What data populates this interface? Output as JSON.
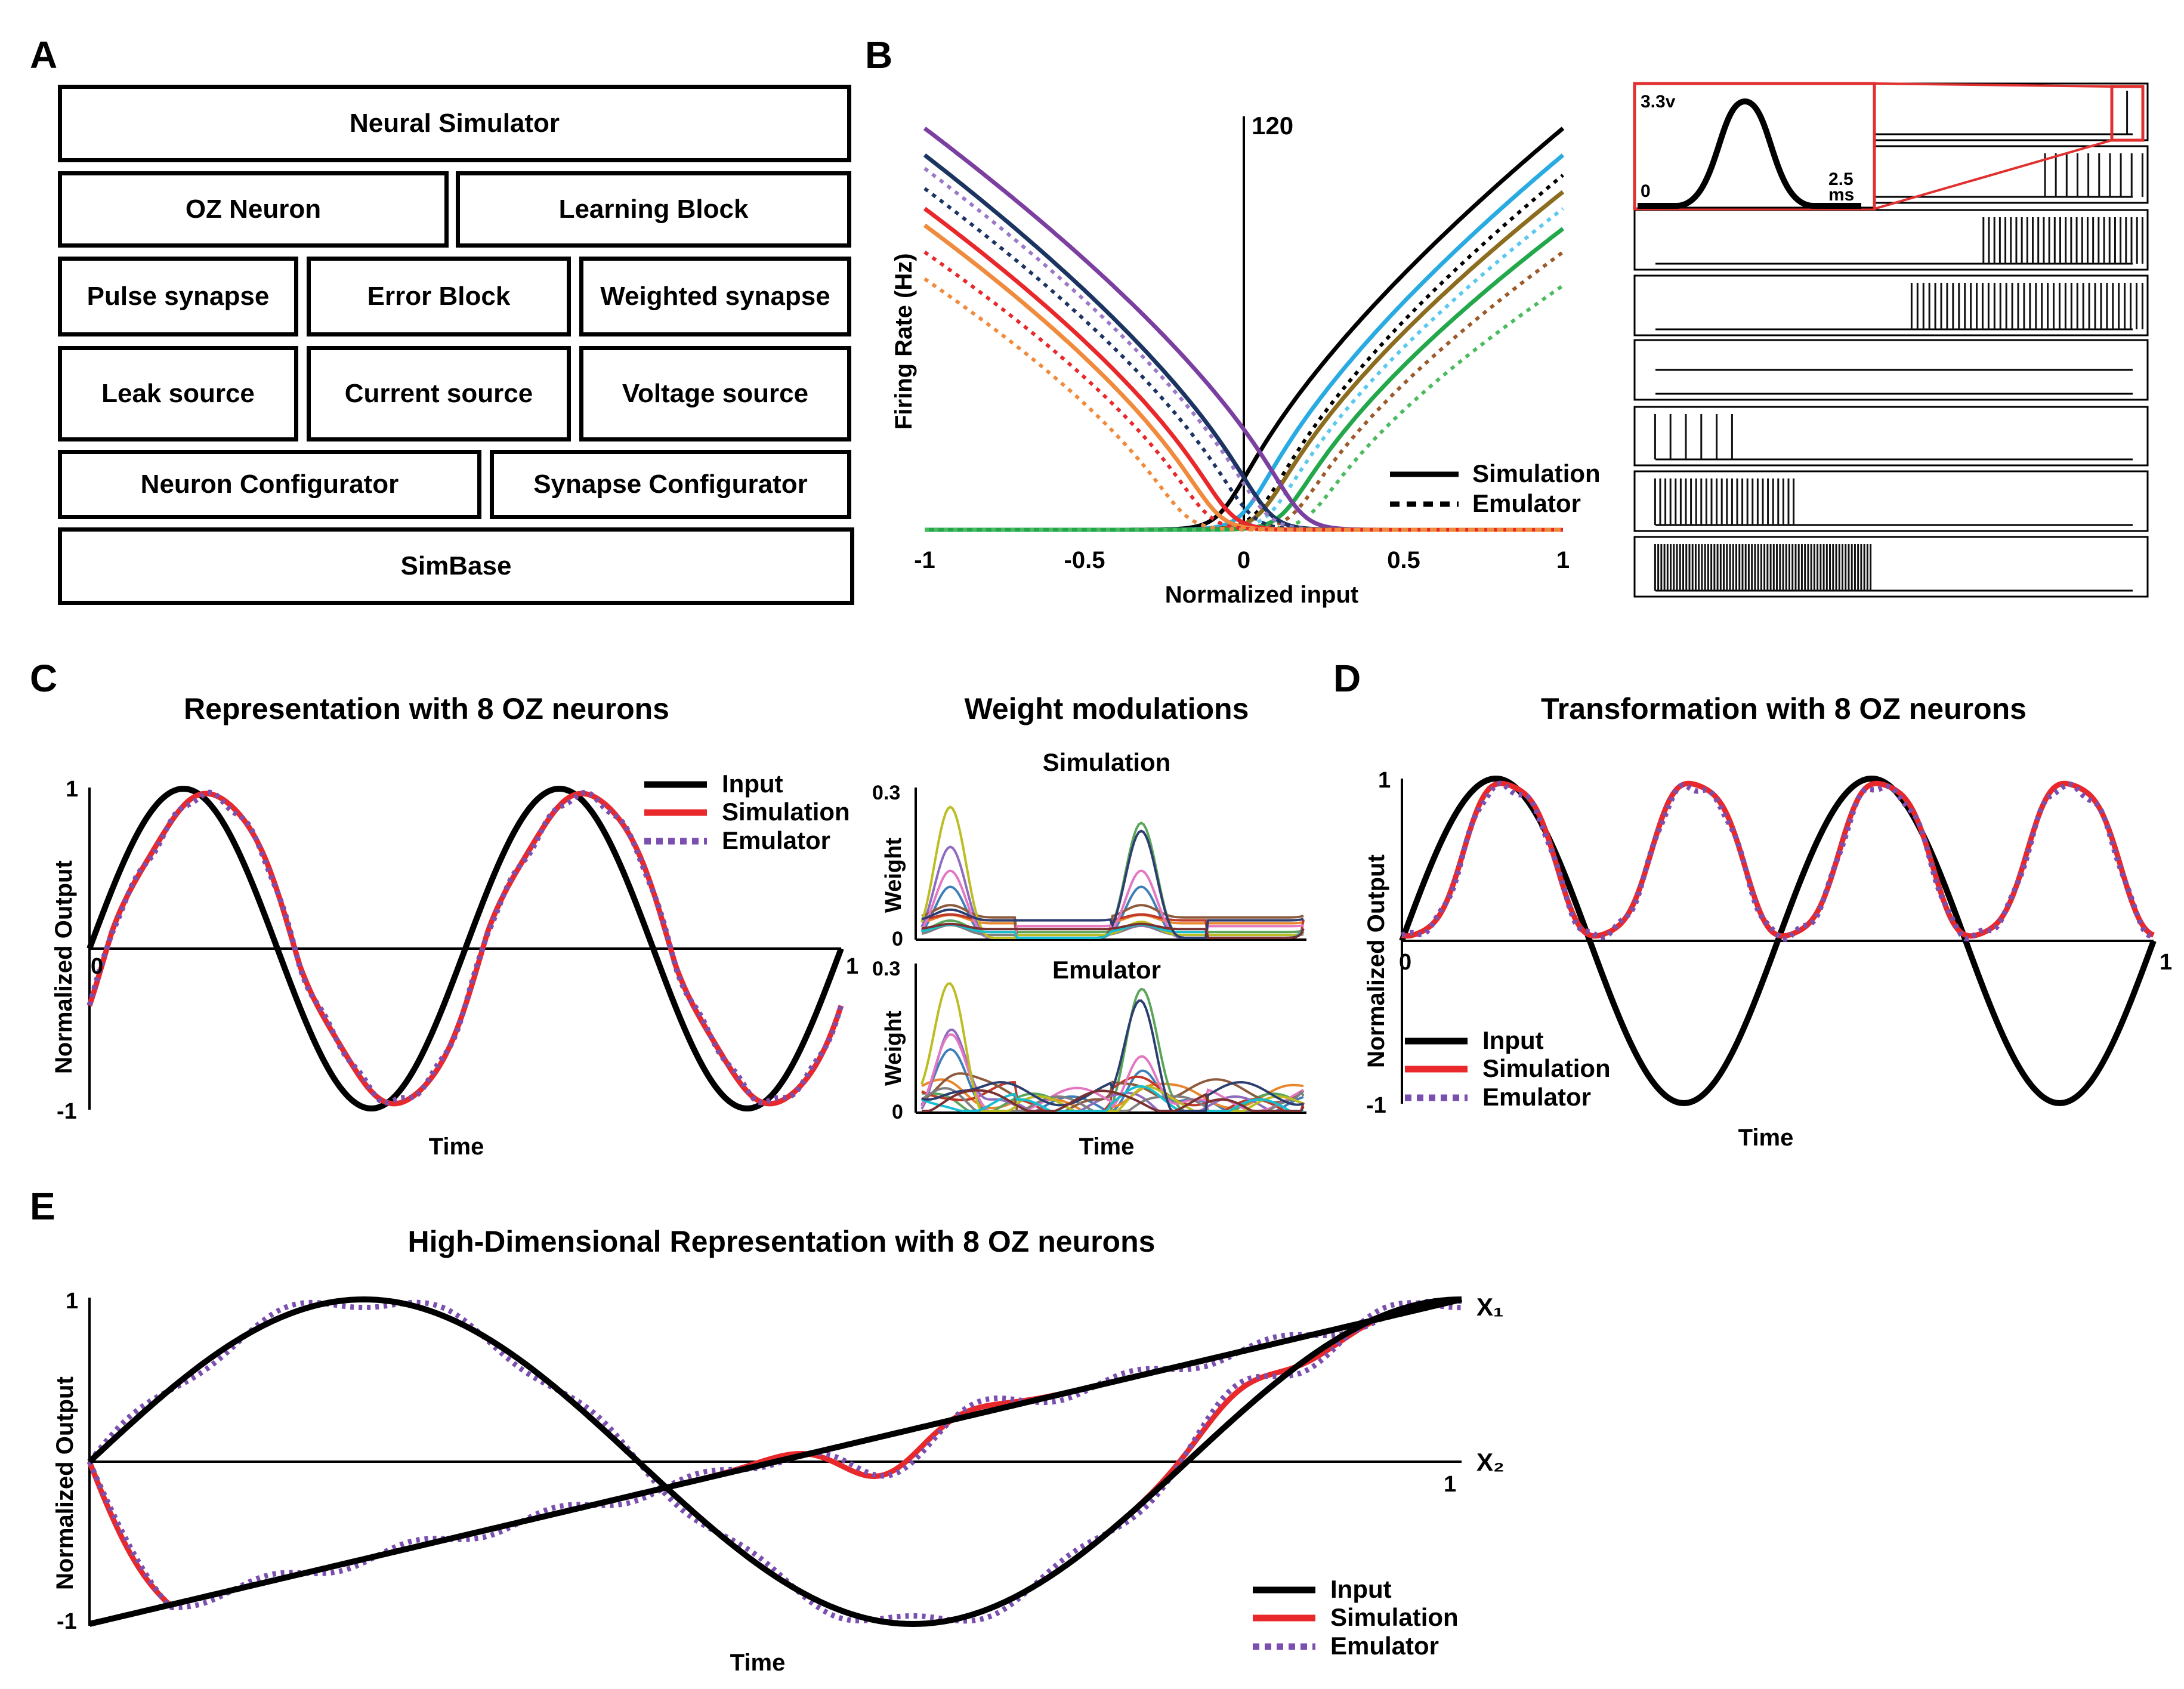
{
  "panel_labels": {
    "a": "A",
    "b": "B",
    "c": "C",
    "d": "D",
    "e": "E"
  },
  "panel_a": {
    "rows": [
      [
        "Neural Simulator"
      ],
      [
        "OZ Neuron",
        "Learning Block"
      ],
      [
        "Pulse synapse",
        "Error Block",
        "Weighted synapse"
      ],
      [
        "Leak source",
        "Current source",
        "Voltage source"
      ],
      [
        "Neuron Configurator",
        "Synapse Configurator"
      ],
      [
        "SimBase"
      ]
    ]
  },
  "chart_data": [
    {
      "id": "tuning-curves",
      "type": "line",
      "title": "",
      "xlabel": "Normalized input",
      "ylabel": "Firing Rate (Hz)",
      "xlim": [
        -1,
        1
      ],
      "ylim": [
        0,
        120
      ],
      "y_max_label": "120",
      "x_ticks": [
        "-1",
        "-0.5",
        "0",
        "0.5",
        "1"
      ],
      "legend": [
        {
          "name": "Simulation",
          "style": "solid"
        },
        {
          "name": "Emulator",
          "style": "dotted"
        }
      ],
      "series": [
        {
          "name": "black",
          "color": "#000000",
          "style": "solid",
          "direction": 1,
          "threshold": -0.05,
          "max": 120
        },
        {
          "name": "cyan",
          "color": "#29abe2",
          "style": "solid",
          "direction": 1,
          "threshold": 0.02,
          "max": 112
        },
        {
          "name": "black-dot",
          "color": "#000000",
          "style": "dotted",
          "direction": 1,
          "threshold": 0.06,
          "max": 106
        },
        {
          "name": "olive",
          "color": "#8c6d1f",
          "style": "solid",
          "direction": 1,
          "threshold": 0.07,
          "max": 101
        },
        {
          "name": "lightblue-dot",
          "color": "#5cc8ee",
          "style": "dotted",
          "direction": 1,
          "threshold": 0.1,
          "max": 96
        },
        {
          "name": "green",
          "color": "#22a84a",
          "style": "solid",
          "direction": 1,
          "threshold": 0.14,
          "max": 90
        },
        {
          "name": "brown-dot",
          "color": "#9c5a2a",
          "style": "dotted",
          "direction": 1,
          "threshold": 0.17,
          "max": 83
        },
        {
          "name": "green-dot",
          "color": "#4cbb60",
          "style": "dotted",
          "direction": 1,
          "threshold": 0.22,
          "max": 73
        },
        {
          "name": "purple",
          "color": "#7b3fa0",
          "style": "solid",
          "direction": -1,
          "threshold": 0.16,
          "max": 120
        },
        {
          "name": "navy",
          "color": "#1c3461",
          "style": "solid",
          "direction": -1,
          "threshold": 0.06,
          "max": 112
        },
        {
          "name": "purple-dot",
          "color": "#9c78c8",
          "style": "dotted",
          "direction": -1,
          "threshold": 0.05,
          "max": 108
        },
        {
          "name": "navy-dot",
          "color": "#1c3461",
          "style": "dotted",
          "direction": -1,
          "threshold": 0.0,
          "max": 102
        },
        {
          "name": "red",
          "color": "#e8282b",
          "style": "solid",
          "direction": -1,
          "threshold": -0.06,
          "max": 96
        },
        {
          "name": "orange",
          "color": "#f08a3c",
          "style": "solid",
          "direction": -1,
          "threshold": -0.1,
          "max": 91
        },
        {
          "name": "red-dot",
          "color": "#e8282b",
          "style": "dotted",
          "direction": -1,
          "threshold": -0.13,
          "max": 83
        },
        {
          "name": "orange-dot",
          "color": "#f08a3c",
          "style": "dotted",
          "direction": -1,
          "threshold": -0.2,
          "max": 75
        }
      ]
    },
    {
      "id": "spike-trains",
      "type": "line",
      "inset_peak_label": "3.3v",
      "inset_zero_label": "0",
      "inset_time_label": "2.5",
      "inset_time_unit": "ms",
      "rows": [
        {
          "start": 0.93,
          "end": 0.99,
          "spikes": 3
        },
        {
          "start": 0.8,
          "end": 0.99,
          "spikes": 10
        },
        {
          "start": 0.68,
          "end": 0.99,
          "spikes": 30
        },
        {
          "start": 0.54,
          "end": 0.99,
          "spikes": 40
        },
        {
          "start": 0,
          "end": 0,
          "spikes": 0
        },
        {
          "start": 0.04,
          "end": 0.19,
          "spikes": 6
        },
        {
          "start": 0.04,
          "end": 0.31,
          "spikes": 28
        },
        {
          "start": 0.04,
          "end": 0.46,
          "spikes": 70
        }
      ]
    },
    {
      "id": "representation",
      "type": "line",
      "title": "Representation with 8 OZ neurons",
      "xlabel": "Time",
      "ylabel": "Normalized Output",
      "xlim": [
        0,
        1
      ],
      "ylim": [
        -1,
        1
      ],
      "y_tick_top": "1",
      "y_tick_bottom": "-1",
      "x_tick_left": "0",
      "x_tick_right": "1",
      "signal": "sin(4πt)",
      "legend": [
        {
          "name": "Input",
          "color": "#000000",
          "style": "solid"
        },
        {
          "name": "Simulation",
          "color": "#e8282b",
          "style": "solid"
        },
        {
          "name": "Emulator",
          "color": "#7b4fb0",
          "style": "dotted"
        }
      ]
    },
    {
      "id": "weights",
      "type": "line",
      "title": "Weight modulations",
      "subplots": [
        {
          "title": "Simulation",
          "ylabel": "Weight",
          "y_top": "0.3",
          "y_bottom": "0"
        },
        {
          "title": "Emulator",
          "ylabel": "Weight",
          "y_top": "0.3",
          "y_bottom": "0"
        }
      ],
      "xlabel": "Time",
      "colors": [
        "#3f7fb8",
        "#e8862c",
        "#5aa55a",
        "#c0392b",
        "#8e6bbf",
        "#8c5a3c",
        "#e377c2",
        "#7f7f7f",
        "#bcbd22",
        "#17becf",
        "#2c3e70",
        "#7a3030"
      ]
    },
    {
      "id": "transformation",
      "type": "line",
      "title": "Transformation with 8 OZ neurons",
      "xlabel": "Time",
      "ylabel": "Normalized Output",
      "xlim": [
        0,
        1
      ],
      "ylim": [
        -1,
        1
      ],
      "y_tick_top": "1",
      "y_tick_bottom": "-1",
      "x_tick_left": "0",
      "x_tick_right": "1",
      "input": "sin(4πt)",
      "output": "sin²(4πt)",
      "legend": [
        {
          "name": "Input",
          "color": "#000000",
          "style": "solid"
        },
        {
          "name": "Simulation",
          "color": "#e8282b",
          "style": "solid"
        },
        {
          "name": "Emulator",
          "color": "#7b4fb0",
          "style": "dotted"
        }
      ]
    },
    {
      "id": "high-dim",
      "type": "line",
      "title": "High-Dimensional Representation with 8 OZ neurons",
      "xlabel": "Time",
      "ylabel": "Normalized Output",
      "xlim": [
        0,
        1
      ],
      "ylim": [
        -1,
        1
      ],
      "y_tick_top": "1",
      "y_tick_bottom": "-1",
      "x_tick_right": "1",
      "x1_label": "X₁",
      "x2_label": "X₂",
      "x1": "2t-1",
      "x2": "sin(2.5πt)",
      "legend": [
        {
          "name": "Input",
          "color": "#000000",
          "style": "solid"
        },
        {
          "name": "Simulation",
          "color": "#e8282b",
          "style": "solid"
        },
        {
          "name": "Emulator",
          "color": "#7b4fb0",
          "style": "dotted"
        }
      ]
    }
  ]
}
